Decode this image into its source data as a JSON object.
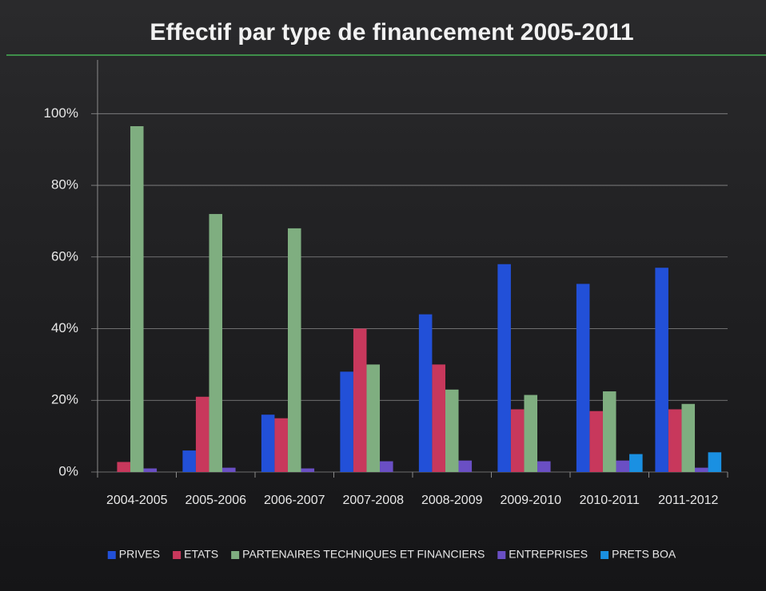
{
  "chart_data": {
    "type": "bar",
    "title": "Effectif par type de financement 2005-2011",
    "categories": [
      "2004-2005",
      "2005-2006",
      "2006-2007",
      "2007-2008",
      "2008-2009",
      "2009-2010",
      "2010-2011",
      "2011-2012"
    ],
    "series": [
      {
        "name": "PRIVES",
        "color": "#2250d8",
        "values": [
          0,
          6,
          16,
          28,
          44,
          58,
          52.5,
          57
        ]
      },
      {
        "name": "ETATS",
        "color": "#c8385c",
        "values": [
          2.8,
          21,
          15,
          40,
          30,
          17.5,
          17,
          17.5
        ]
      },
      {
        "name": "PARTENAIRES TECHNIQUES ET FINANCIERS",
        "color": "#7fae80",
        "values": [
          96.5,
          72,
          68,
          30,
          23,
          21.5,
          22.5,
          19
        ]
      },
      {
        "name": "ENTREPRISES",
        "color": "#6a4fc4",
        "values": [
          1,
          1.2,
          1,
          3,
          3.2,
          3,
          3.2,
          1.2
        ]
      },
      {
        "name": "PRETS BOA",
        "color": "#1a90e2",
        "values": [
          0,
          0,
          0,
          0,
          0,
          0,
          5,
          5.5
        ]
      }
    ],
    "ylim": [
      0,
      115
    ],
    "yticks": [
      {
        "value": 0,
        "label": "0%"
      },
      {
        "value": 20,
        "label": "20%"
      },
      {
        "value": 40,
        "label": "40%"
      },
      {
        "value": 60,
        "label": "60%"
      },
      {
        "value": 80,
        "label": "80%"
      },
      {
        "value": 100,
        "label": "100%"
      }
    ],
    "grid": true,
    "legend": "bottom"
  }
}
